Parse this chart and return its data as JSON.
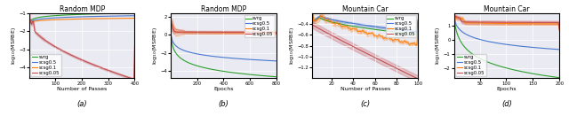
{
  "fig_width": 6.4,
  "fig_height": 1.4,
  "dpi": 100,
  "bg_color": "#eaeaf2",
  "colors": {
    "svrg": "#2ca02c",
    "scsg0.5": "#4878cf",
    "scsg0.1": "#ff7f0e",
    "scsg0.05": "#c44e52"
  },
  "legend_labels": [
    "svrg",
    "scsg0.5",
    "scsg0.1",
    "scsg0.05"
  ],
  "subplot_labels": [
    "(a)",
    "(b)",
    "(c)",
    "(d)"
  ],
  "titles": [
    "Random MDP",
    "Random MDP",
    "Mountain Car",
    "Mountain Car"
  ],
  "xlabels": [
    "Number of Passes",
    "Epochs",
    "Number of Passes",
    "Epochs"
  ],
  "ylabel": "log$_{10}$(MSPBE)"
}
